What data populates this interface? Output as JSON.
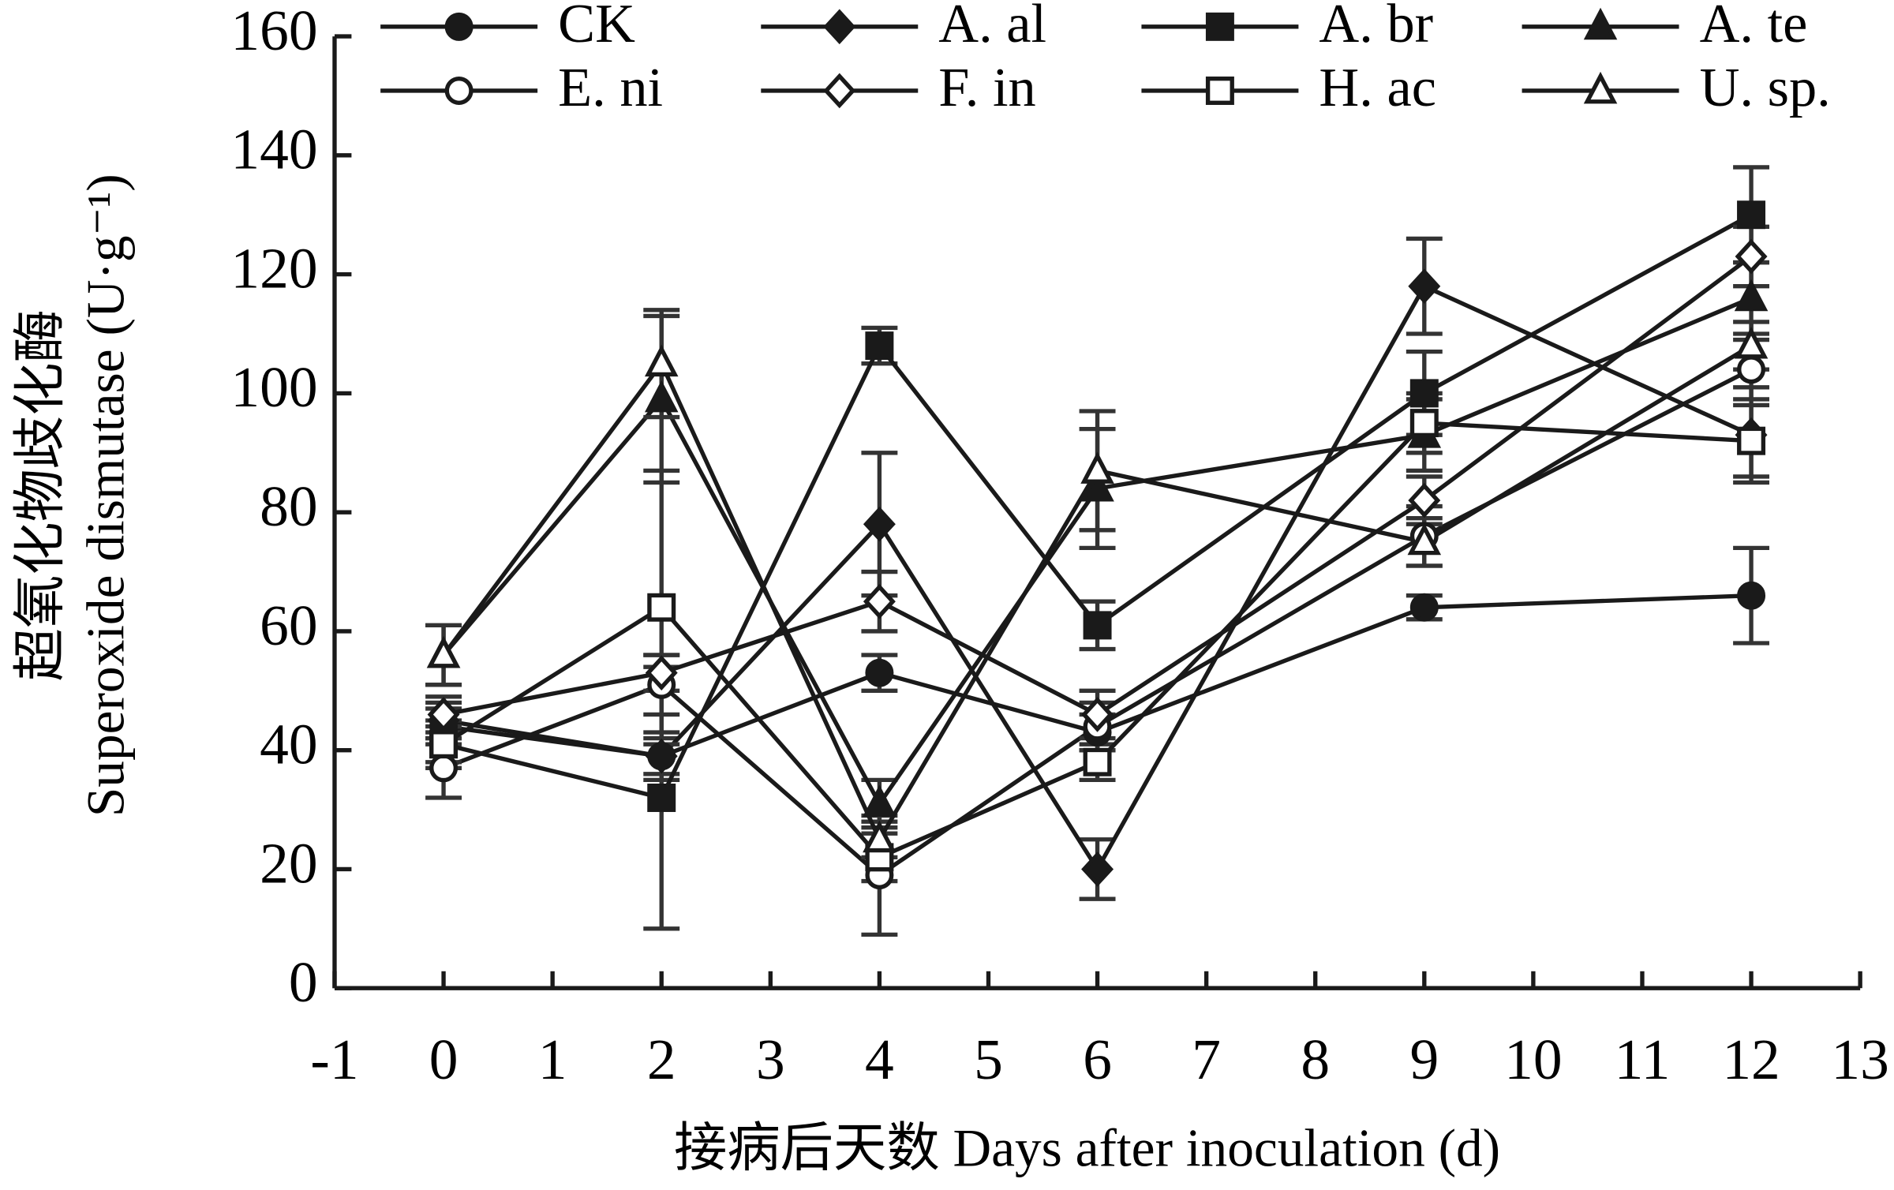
{
  "chart_data": {
    "type": "line",
    "x_label": "接病后天数 Days after inoculation (d)",
    "y_label_cn": "超氧化物歧化酶",
    "y_label": "Superoxide dismutase (U·g⁻¹)",
    "x": [
      0,
      2,
      4,
      6,
      9,
      12
    ],
    "xlim": [
      -1,
      13
    ],
    "xticks": [
      -1,
      0,
      1,
      2,
      3,
      4,
      5,
      6,
      7,
      8,
      9,
      10,
      11,
      12,
      13
    ],
    "ylim": [
      0,
      160
    ],
    "yticks": [
      0,
      20,
      40,
      60,
      80,
      100,
      120,
      140,
      160
    ],
    "series": [
      {
        "name": "CK",
        "color": "#1a1a1a",
        "marker": "circle",
        "filled": true,
        "values": [
          44,
          39,
          53,
          43,
          64,
          66
        ],
        "errors": [
          3,
          3,
          3,
          3,
          2,
          8
        ]
      },
      {
        "name": "A. al",
        "color": "#1a1a1a",
        "marker": "diamond",
        "filled": true,
        "values": [
          45,
          39,
          78,
          20,
          118,
          93
        ],
        "errors": [
          3,
          4,
          12,
          5,
          8,
          8
        ]
      },
      {
        "name": "A. br",
        "color": "#1a1a1a",
        "marker": "square",
        "filled": true,
        "values": [
          41,
          32,
          108,
          61,
          100,
          130
        ],
        "errors": [
          4,
          22,
          3,
          4,
          7,
          8
        ]
      },
      {
        "name": "A. te",
        "color": "#1a1a1a",
        "marker": "triangle",
        "filled": true,
        "values": [
          56,
          99,
          31,
          84,
          93,
          116
        ],
        "errors": [
          5,
          14,
          4,
          10,
          6,
          6
        ]
      },
      {
        "name": "E. ni",
        "color": "#1a1a1a",
        "marker": "circle",
        "filled": false,
        "values": [
          37,
          51,
          19,
          44,
          76,
          104
        ],
        "errors": [
          5,
          5,
          10,
          4,
          5,
          5
        ]
      },
      {
        "name": "F. in",
        "color": "#1a1a1a",
        "marker": "diamond",
        "filled": false,
        "values": [
          46,
          53,
          65,
          46,
          82,
          123
        ],
        "errors": [
          3,
          3,
          5,
          4,
          4,
          5
        ]
      },
      {
        "name": "H. ac",
        "color": "#1a1a1a",
        "marker": "square",
        "filled": false,
        "values": [
          41,
          64,
          22,
          38,
          95,
          92
        ],
        "errors": [
          3,
          23,
          4,
          3,
          5,
          6
        ]
      },
      {
        "name": "U. sp.",
        "color": "#1a1a1a",
        "marker": "triangle",
        "filled": false,
        "values": [
          56,
          105,
          25,
          87,
          75,
          108
        ],
        "errors": [
          5,
          9,
          3,
          10,
          4,
          4
        ]
      }
    ]
  }
}
